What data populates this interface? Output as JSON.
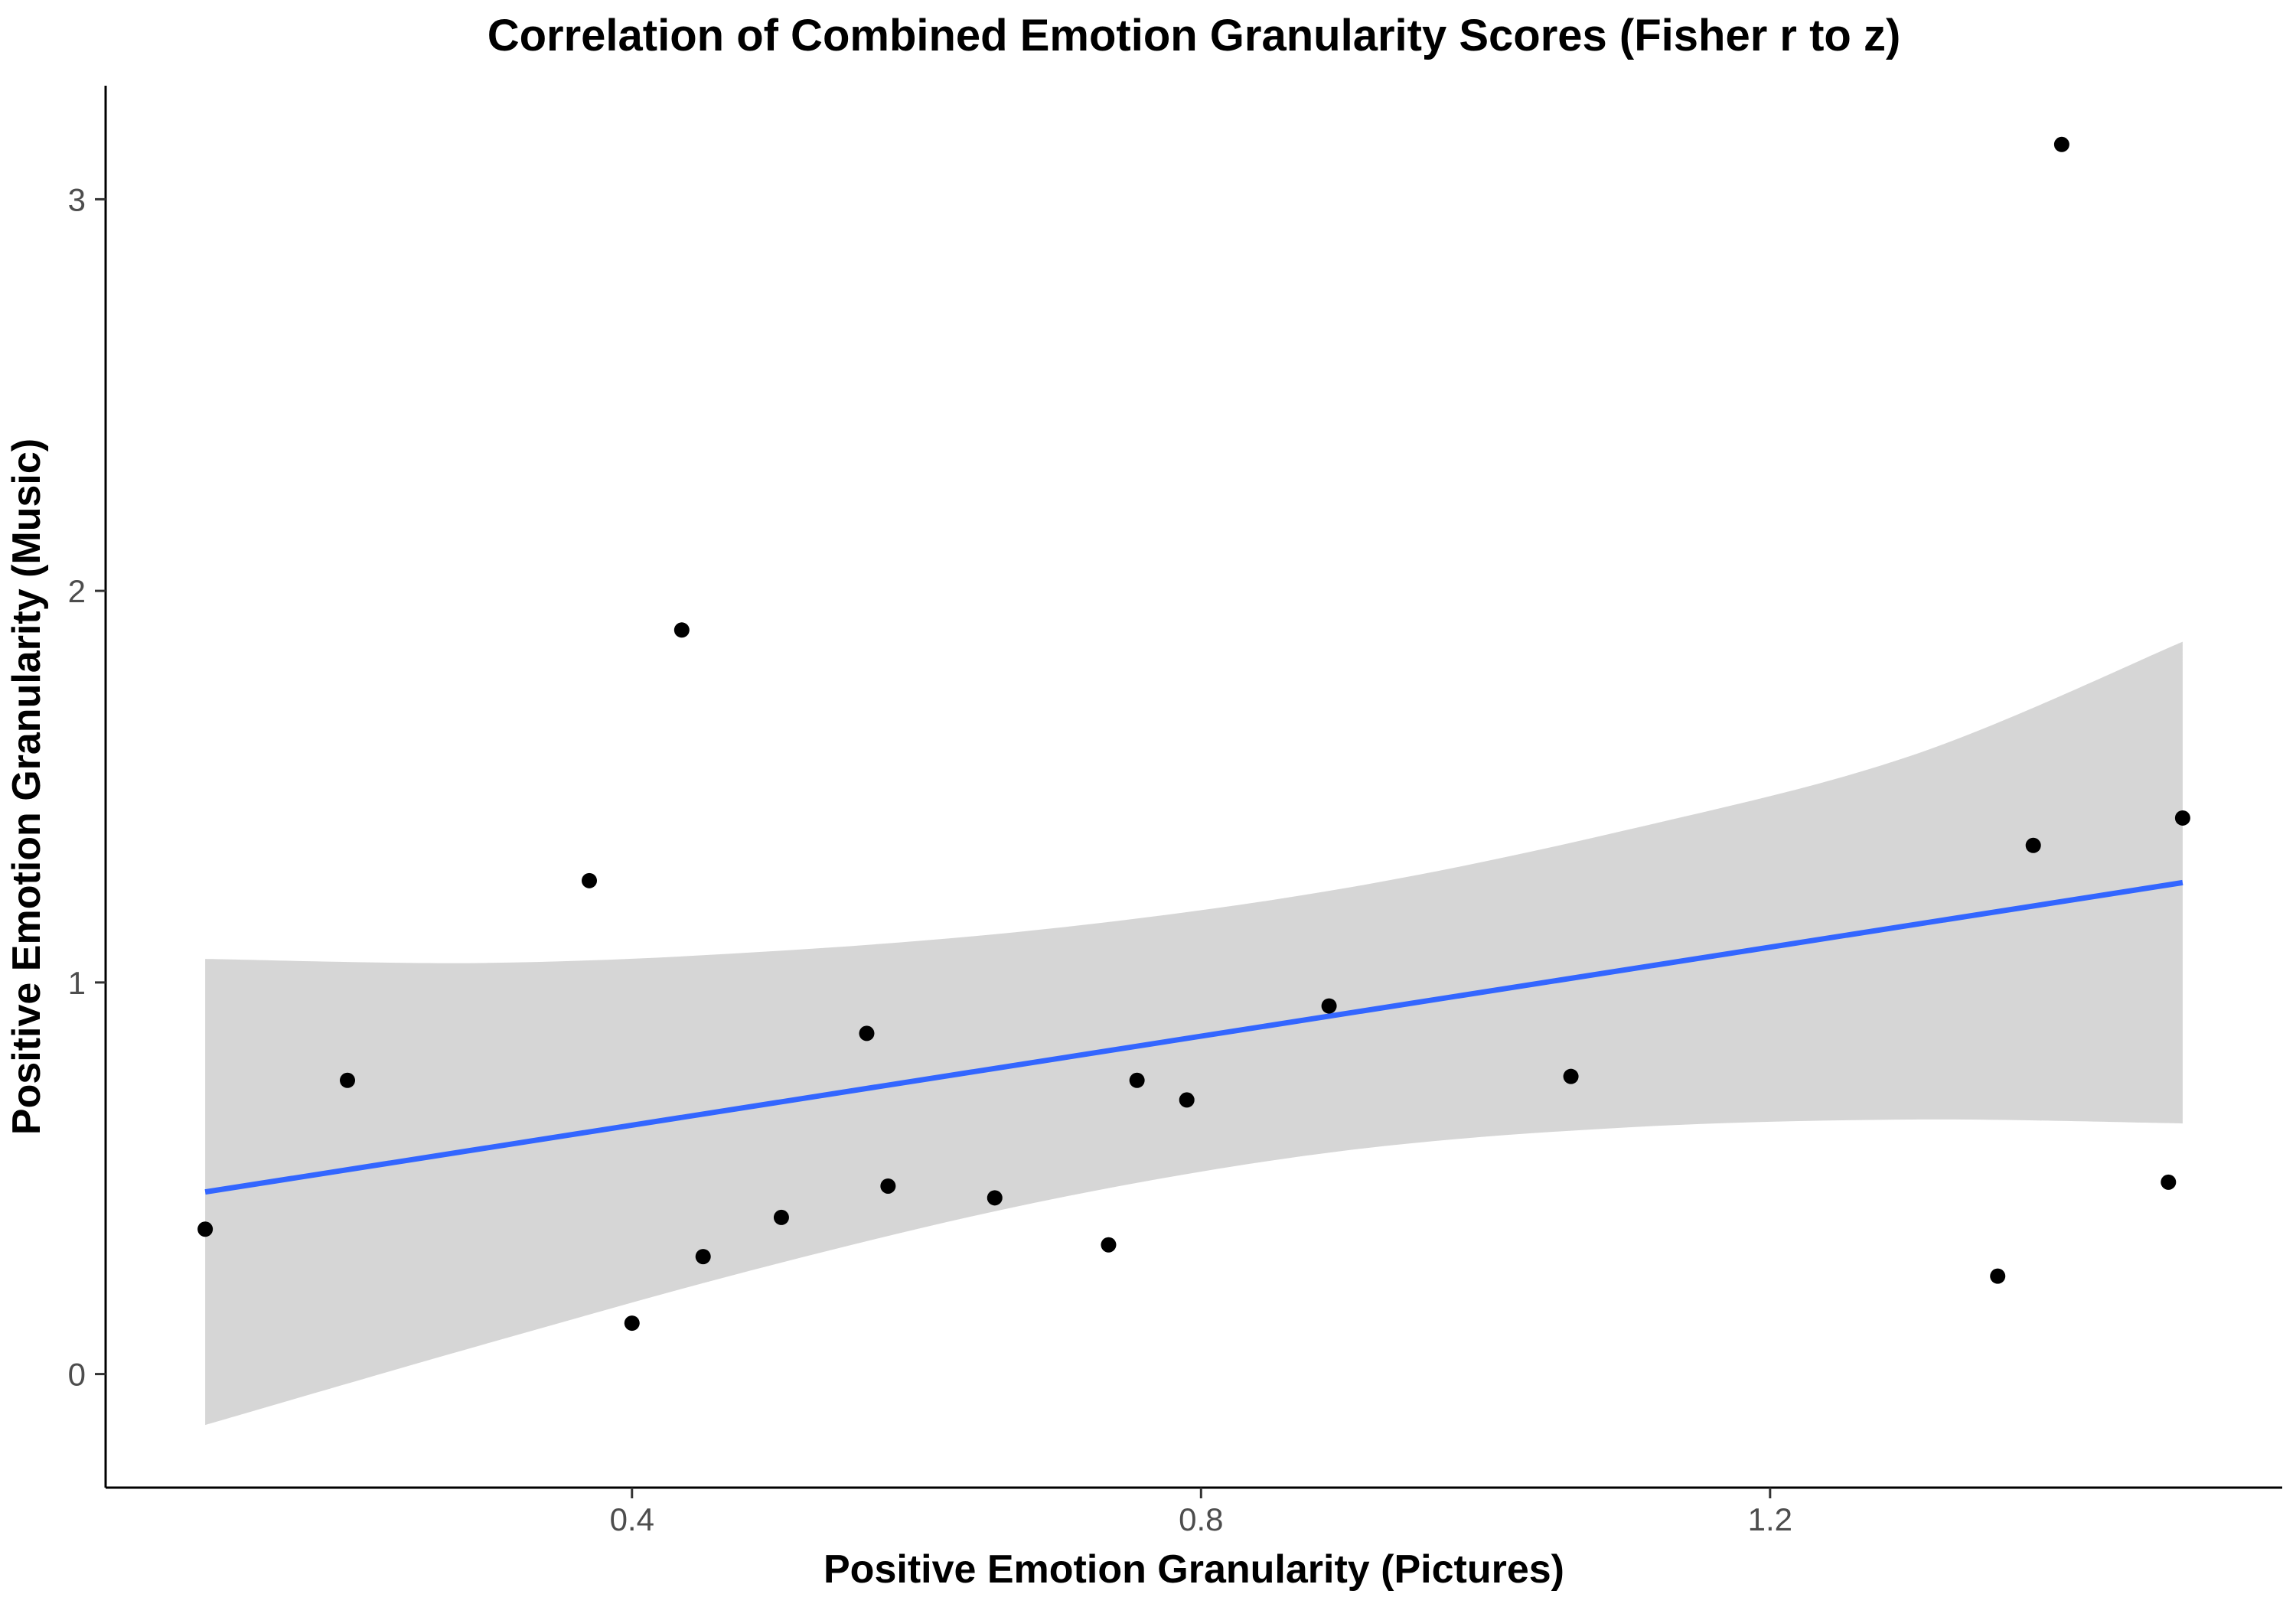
{
  "chart_data": {
    "type": "scatter",
    "title": "Correlation of Combined Emotion Granularity Scores (Fisher r to z)",
    "xlabel": "Positive Emotion Granularity (Pictures)",
    "ylabel": "Positive Emotion Granularity (Music)",
    "xlim": [
      0.03,
      1.56
    ],
    "ylim": [
      -0.29,
      3.29
    ],
    "x_ticks": [
      0.4,
      0.8,
      1.2
    ],
    "x_tick_labels": [
      "0.4",
      "0.8",
      "1.2"
    ],
    "y_ticks": [
      0,
      1,
      2,
      3
    ],
    "y_tick_labels": [
      "0",
      "1",
      "2",
      "3"
    ],
    "grid": false,
    "points": [
      {
        "x": 0.1,
        "y": 0.37
      },
      {
        "x": 0.2,
        "y": 0.75
      },
      {
        "x": 0.37,
        "y": 1.26
      },
      {
        "x": 0.4,
        "y": 0.13
      },
      {
        "x": 0.435,
        "y": 1.9
      },
      {
        "x": 0.45,
        "y": 0.3
      },
      {
        "x": 0.505,
        "y": 0.4
      },
      {
        "x": 0.565,
        "y": 0.87
      },
      {
        "x": 0.58,
        "y": 0.48
      },
      {
        "x": 0.655,
        "y": 0.45
      },
      {
        "x": 0.735,
        "y": 0.33
      },
      {
        "x": 0.755,
        "y": 0.75
      },
      {
        "x": 0.79,
        "y": 0.7
      },
      {
        "x": 0.89,
        "y": 0.94
      },
      {
        "x": 1.06,
        "y": 0.76
      },
      {
        "x": 1.36,
        "y": 0.25
      },
      {
        "x": 1.385,
        "y": 1.35
      },
      {
        "x": 1.405,
        "y": 3.14
      },
      {
        "x": 1.48,
        "y": 0.49
      },
      {
        "x": 1.49,
        "y": 1.42
      }
    ],
    "fit_line": {
      "x": [
        0.1,
        1.49
      ],
      "y": [
        0.465,
        1.255
      ],
      "color": "#3366ff"
    },
    "confidence_band": {
      "x": [
        0.1,
        0.3,
        0.5,
        0.7,
        0.9,
        1.1,
        1.3,
        1.49
      ],
      "lower": [
        -0.13,
        0.08,
        0.28,
        0.45,
        0.57,
        0.63,
        0.65,
        0.64
      ],
      "upper": [
        1.06,
        1.05,
        1.08,
        1.14,
        1.24,
        1.39,
        1.58,
        1.87
      ],
      "color": "#d6d6d6"
    },
    "point_color": "#000000"
  }
}
